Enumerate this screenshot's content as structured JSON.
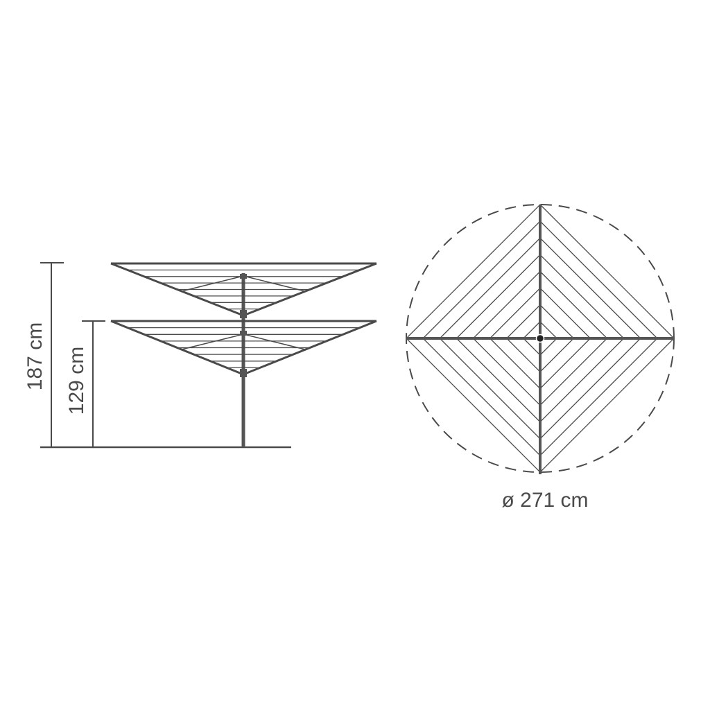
{
  "dimensions": {
    "total_height": "187 cm",
    "lower_arm_height": "129 cm",
    "diameter": "ø 271 cm"
  },
  "colors": {
    "line": "#4a4a4a",
    "frame": "#555555",
    "background": "#ffffff"
  }
}
